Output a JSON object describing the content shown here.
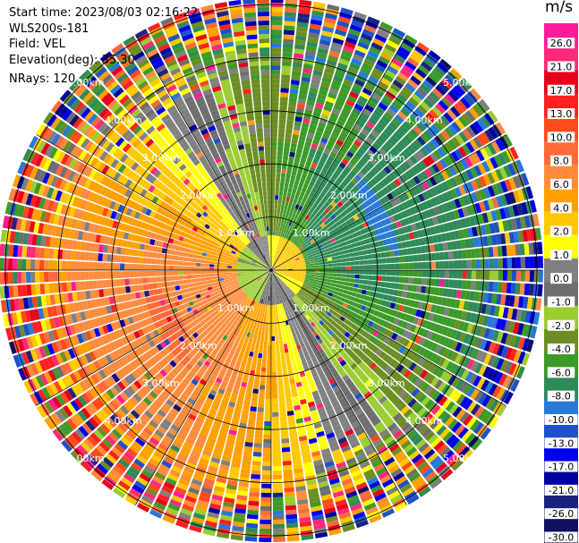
{
  "header": {
    "start_time": "Start time: 2023/08/03 02:16:22",
    "instrument": "WLS200s-181",
    "field": "Field: VEL",
    "elevation": "Elevation(deg): 35.30",
    "nrays": "NRays: 120"
  },
  "colorbar": {
    "unit": "m/s",
    "ticks": [
      "26.0",
      "21.0",
      "17.0",
      "13.0",
      "10.0",
      "8.0",
      "6.0",
      "4.0",
      "2.0",
      "1.0",
      "0.0",
      "-1.0",
      "-2.0",
      "-4.0",
      "-6.0",
      "-8.0",
      "-10.0",
      "-13.0",
      "-17.0",
      "-21.0",
      "-26.0",
      "-30.0"
    ],
    "colors": [
      "#ff1a9c",
      "#ff2a7a",
      "#e8001c",
      "#ff2020",
      "#ff4a1a",
      "#ff6a3a",
      "#ff8c3c",
      "#ffa000",
      "#ffc800",
      "#ffff00",
      "#808080",
      "#6e6e6e",
      "#9acd32",
      "#6b8e23",
      "#3c9a28",
      "#2e8b57",
      "#2878d8",
      "#1e50c8",
      "#0000ee",
      "#0000a0",
      "#1a237e",
      "#101060",
      "#0a0a40"
    ]
  },
  "rings": {
    "labels": [
      "1.00km",
      "2.00km",
      "3.00km",
      "4.00km",
      "5.00km"
    ]
  }
}
